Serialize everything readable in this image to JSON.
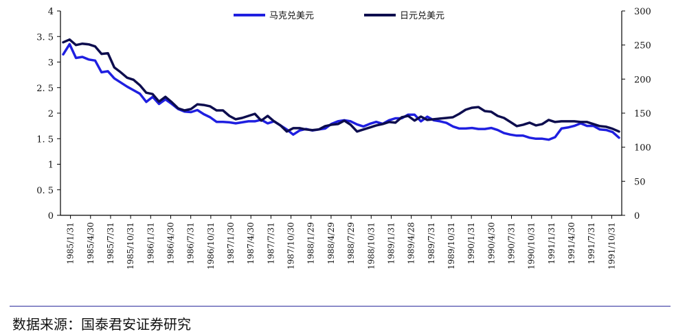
{
  "chart_data": {
    "type": "line",
    "title": "",
    "xlabel": "",
    "ylabel": "",
    "y_left_lim": [
      0,
      4
    ],
    "y_left_ticks": [
      "0",
      "0.5",
      "1",
      "1.5",
      "2",
      "2.5",
      "3",
      "3.5",
      "4"
    ],
    "y_right_lim": [
      0,
      300
    ],
    "y_right_ticks": [
      "0",
      "50",
      "100",
      "150",
      "200",
      "250",
      "300"
    ],
    "grid": false,
    "legend_position": "top-center",
    "x_tick_labels": [
      "1985/1/31",
      "1985/4/30",
      "1985/7/31",
      "1985/10/31",
      "1986/1/31",
      "1986/4/30",
      "1986/7/31",
      "1986/10/31",
      "1987/1/30",
      "1987/4/30",
      "1987/7/31",
      "1987/10/30",
      "1988/1/29",
      "1988/4/29",
      "1988/7/29",
      "1988/10/31",
      "1989/1/31",
      "1989/4/28",
      "1989/7/31",
      "1989/10/31",
      "1990/1/31",
      "1990/4/30",
      "1990/7/31",
      "1990/10/31",
      "1991/1/31",
      "1991/4/30",
      "1991/7/31",
      "1991/10/31"
    ],
    "series": [
      {
        "name": "马克兑美元",
        "axis": "left",
        "color": "#1f1fe0",
        "values": [
          3.15,
          3.35,
          3.08,
          3.1,
          3.05,
          3.03,
          2.8,
          2.82,
          2.68,
          2.6,
          2.52,
          2.45,
          2.38,
          2.22,
          2.32,
          2.18,
          2.27,
          2.18,
          2.08,
          2.03,
          2.02,
          2.06,
          1.98,
          1.92,
          1.83,
          1.83,
          1.82,
          1.8,
          1.82,
          1.84,
          1.84,
          1.87,
          1.8,
          1.84,
          1.76,
          1.68,
          1.58,
          1.66,
          1.69,
          1.66,
          1.68,
          1.7,
          1.79,
          1.84,
          1.86,
          1.84,
          1.78,
          1.74,
          1.79,
          1.83,
          1.79,
          1.86,
          1.9,
          1.9,
          1.97,
          1.97,
          1.84,
          1.93,
          1.86,
          1.84,
          1.81,
          1.74,
          1.7,
          1.7,
          1.71,
          1.69,
          1.69,
          1.71,
          1.67,
          1.61,
          1.58,
          1.56,
          1.56,
          1.52,
          1.5,
          1.5,
          1.48,
          1.53,
          1.7,
          1.72,
          1.75,
          1.8,
          1.75,
          1.75,
          1.68,
          1.67,
          1.63,
          1.52
        ]
      },
      {
        "name": "日元兑美元",
        "axis": "right",
        "color": "#0d0d4e",
        "values": [
          254,
          258,
          250,
          252,
          251,
          248,
          237,
          238,
          217,
          210,
          202,
          199,
          191,
          180,
          178,
          167,
          174,
          166,
          157,
          154,
          156,
          163,
          162,
          160,
          154,
          154,
          146,
          141,
          143,
          146,
          149,
          139,
          146,
          138,
          132,
          123,
          128,
          128,
          126,
          125,
          126,
          131,
          133,
          134,
          139,
          133,
          123,
          126,
          129,
          132,
          134,
          137,
          136,
          144,
          146,
          139,
          145,
          140,
          141,
          142,
          143,
          144,
          149,
          155,
          158,
          159,
          153,
          152,
          146,
          143,
          137,
          131,
          133,
          136,
          132,
          134,
          140,
          137,
          138,
          138,
          138,
          137,
          137,
          134,
          131,
          130,
          127,
          123
        ]
      }
    ]
  },
  "source_text": "数据来源：国泰君安证券研究"
}
